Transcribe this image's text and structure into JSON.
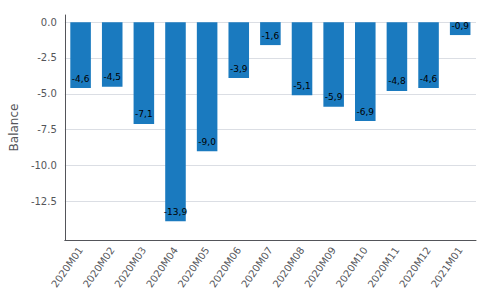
{
  "chart_data": {
    "type": "bar",
    "categories": [
      "2020M01",
      "2020M02",
      "2020M03",
      "2020M04",
      "2020M05",
      "2020M06",
      "2020M07",
      "2020M08",
      "2020M09",
      "2020M10",
      "2020M11",
      "2020M12",
      "2021M01"
    ],
    "values": [
      -4.6,
      -4.5,
      -7.1,
      -13.9,
      -9.0,
      -3.9,
      -1.6,
      -5.1,
      -5.9,
      -6.9,
      -4.8,
      -4.6,
      -0.9
    ],
    "value_labels": [
      "-4,6",
      "-4,5",
      "-7,1",
      "-13,9",
      "-9,0",
      "-3,9",
      "-1,6",
      "-5,1",
      "-5,9",
      "-6,9",
      "-4,8",
      "-4,6",
      "-0,9"
    ],
    "data_labels": true,
    "color": "#1a7abf",
    "ylabel": "Balance",
    "ylim": [
      -15.2,
      0.5
    ],
    "yticks": [
      {
        "value": 0,
        "label": "0.0"
      },
      -2.5,
      {
        "value": -5,
        "label": "-5.0"
      },
      -7.5,
      {
        "value": -10,
        "label": "-10.0"
      },
      -12.5
    ],
    "grid": true
  }
}
